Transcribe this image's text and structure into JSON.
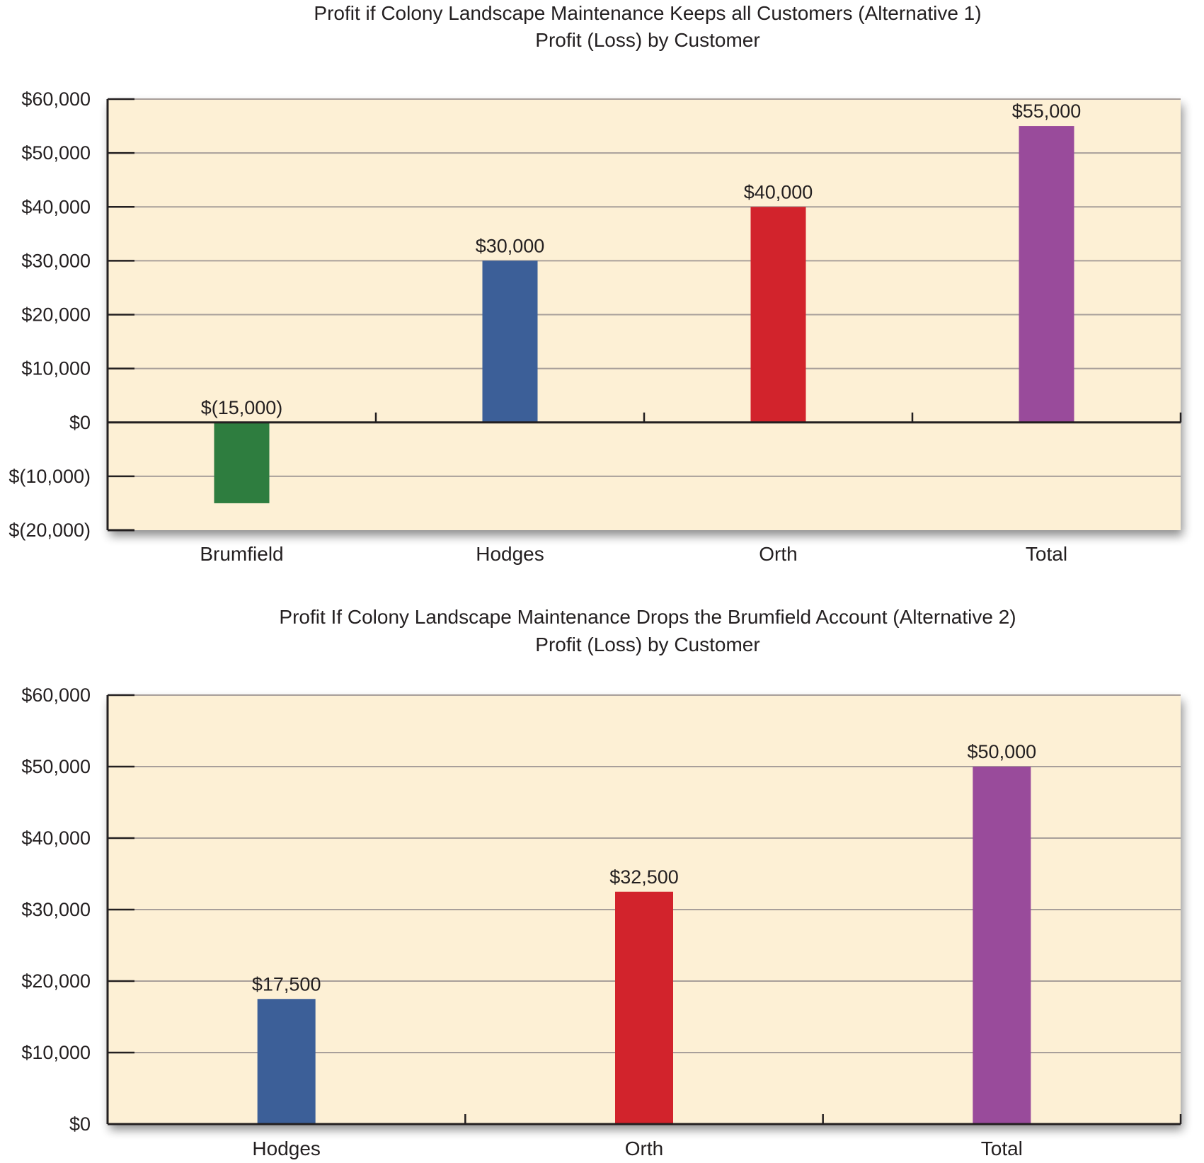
{
  "colors": {
    "plot_bg": "#fdf0d5",
    "grid": "#a89f9a",
    "axis": "#231f20",
    "green": "#2e7d3f",
    "blue": "#3c5f98",
    "red": "#d2232c",
    "purple": "#994b9b"
  },
  "chart_data": [
    {
      "type": "bar",
      "title": "Profit if Colony Landscape Maintenance Keeps all Customers (Alternative 1)",
      "subtitle": "Profit (Loss) by Customer",
      "xlabel": "",
      "ylabel": "",
      "categories": [
        "Brumfield",
        "Hodges",
        "Orth",
        "Total"
      ],
      "values": [
        -15000,
        30000,
        40000,
        55000
      ],
      "data_labels": [
        "$(15,000)",
        "$30,000",
        "$40,000",
        "$55,000"
      ],
      "bar_colors": [
        "#2e7d3f",
        "#3c5f98",
        "#d2232c",
        "#994b9b"
      ],
      "ylim": [
        -20000,
        60000
      ],
      "yticks": [
        60000,
        50000,
        40000,
        30000,
        20000,
        10000,
        0,
        -10000,
        -20000
      ],
      "ytick_labels": [
        "$60,000",
        "$50,000",
        "$40,000",
        "$30,000",
        "$20,000",
        "$10,000",
        "$0",
        "$(10,000)",
        "$(20,000)"
      ],
      "grid": true,
      "legend": "none"
    },
    {
      "type": "bar",
      "title": "Profit If Colony Landscape Maintenance Drops the Brumfield Account (Alternative 2)",
      "subtitle": "Profit (Loss) by Customer",
      "xlabel": "",
      "ylabel": "",
      "categories": [
        "Hodges",
        "Orth",
        "Total"
      ],
      "values": [
        17500,
        32500,
        50000
      ],
      "data_labels": [
        "$17,500",
        "$32,500",
        "$50,000"
      ],
      "bar_colors": [
        "#3c5f98",
        "#d2232c",
        "#994b9b"
      ],
      "ylim": [
        0,
        60000
      ],
      "yticks": [
        60000,
        50000,
        40000,
        30000,
        20000,
        10000,
        0
      ],
      "ytick_labels": [
        "$60,000",
        "$50,000",
        "$40,000",
        "$30,000",
        "$20,000",
        "$10,000",
        "$0"
      ],
      "grid": true,
      "legend": "none"
    }
  ]
}
